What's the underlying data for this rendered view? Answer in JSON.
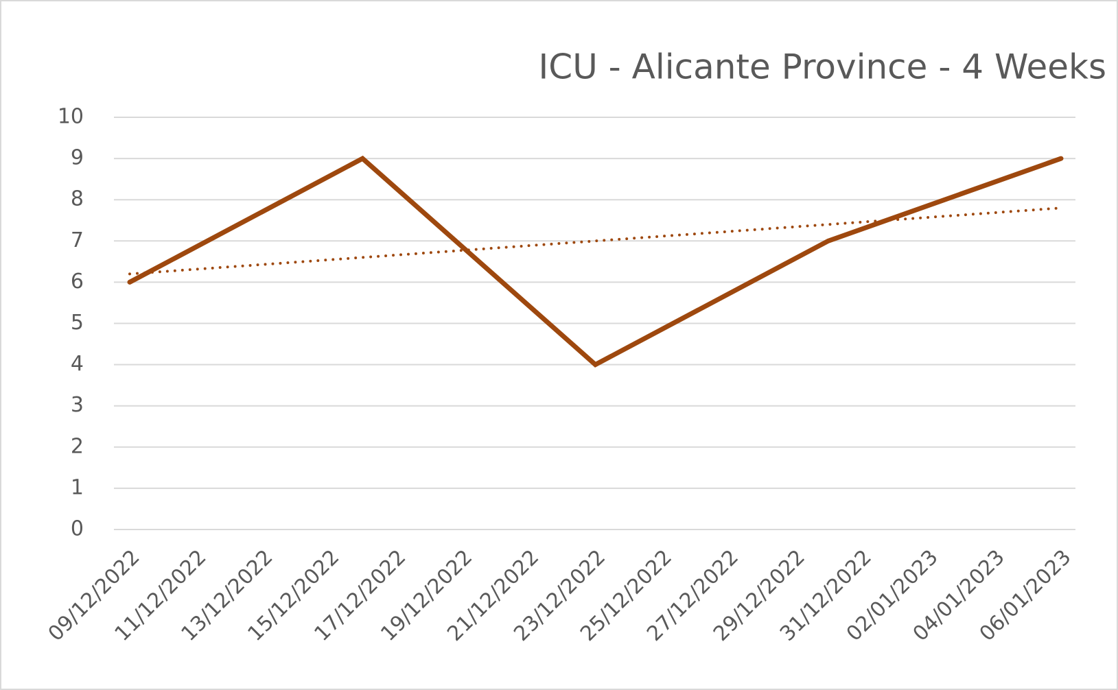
{
  "chart_data": {
    "type": "line",
    "title": "ICU - Alicante Province - 4 Weeks",
    "x": [
      "09/12/2022",
      "16/12/2022",
      "23/12/2022",
      "30/12/2022",
      "06/01/2023"
    ],
    "series": [
      {
        "color": "#9e480e",
        "values": [
          6,
          9,
          4,
          7,
          9
        ]
      }
    ],
    "trendline": {
      "x": [
        "09/12/2022",
        "06/01/2023"
      ],
      "values": [
        6.2,
        7.8
      ],
      "color": "#9e480e",
      "style": "dotted"
    },
    "xlim": [
      "09/12/2022",
      "06/01/2023"
    ],
    "xticks": [
      "09/12/2022",
      "11/12/2022",
      "13/12/2022",
      "15/12/2022",
      "17/12/2022",
      "19/12/2022",
      "21/12/2022",
      "23/12/2022",
      "25/12/2022",
      "27/12/2022",
      "29/12/2022",
      "31/12/2022",
      "02/01/2023",
      "04/01/2023",
      "06/01/2023"
    ],
    "ylim": [
      0,
      10
    ],
    "yticks": [
      0,
      1,
      2,
      3,
      4,
      5,
      6,
      7,
      8,
      9,
      10
    ],
    "grid": true
  }
}
